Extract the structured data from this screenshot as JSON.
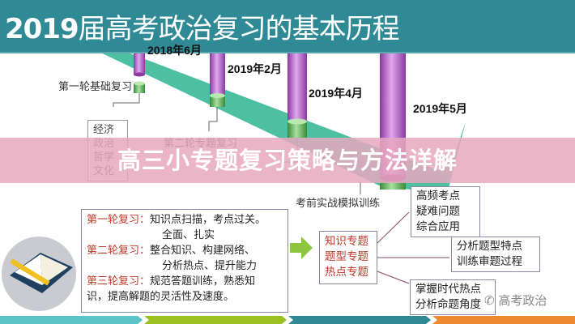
{
  "header": {
    "title_year": "2019",
    "title_rest": "届高考政治复习的基本历程"
  },
  "timeline": {
    "dates": [
      "2018年6月",
      "2019年2月",
      "2019年4月",
      "2019年5月"
    ],
    "stages": [
      "第一轮基础复习",
      "第二轮专题复习",
      "考前实战模拟训练"
    ],
    "subjects": [
      "经济",
      "政治",
      "哲学",
      "文化"
    ]
  },
  "banner": {
    "text": "高三小专题复习策略与方法详解"
  },
  "rounds": {
    "r1_label": "第一轮复习：",
    "r1_text": "知识点扫描，考点过关。",
    "r1_text2": "全面、扎实",
    "r2_label": "第二轮复习：",
    "r2_text": "整合知识、构建网络、",
    "r2_text2": "分析热点、提升能力",
    "r3_label": "第三轮复习：",
    "r3_text": "规范答题训练，熟悉知",
    "r3_text2": "识，提高解题的灵活性及速度。"
  },
  "topics": [
    "知识专题",
    "题型专题",
    "热点专题"
  ],
  "outcomes": [
    [
      "高频考点",
      "疑难问题",
      "综合应用"
    ],
    [
      "分析题型特点",
      "训练审题过程"
    ],
    [
      "掌握时代热点",
      "分析命题角度"
    ]
  ],
  "watermark": "高考政治",
  "colors": {
    "header": "#2f8a95",
    "banner": "#e8a8be",
    "arrow": "#4cc0a0",
    "cylinder_purple": "#b060c8",
    "cylinder_green": "#60b060",
    "strip": [
      "#5cc4c8",
      "#9bc020",
      "#2f8a95",
      "#f08a30"
    ]
  }
}
